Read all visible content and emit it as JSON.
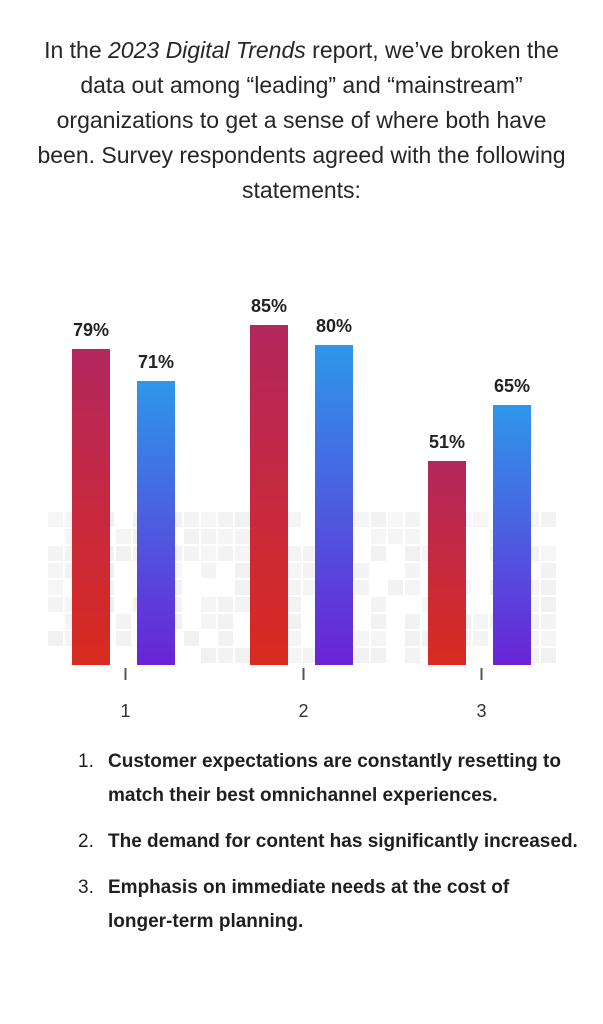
{
  "intro": {
    "prefix": "In the ",
    "report": "2023 Digital Trends",
    "suffix": " report, we’ve broken the data out among “leading” and “mainstream” organizations to get a sense of where both have been. Survey respondents agreed with the following statements:"
  },
  "chart_data": {
    "type": "bar",
    "categories": [
      "1",
      "2",
      "3"
    ],
    "series": [
      {
        "values": [
          79,
          85,
          51
        ],
        "labels": [
          "79%",
          "85%",
          "51%"
        ],
        "color": "#d0304a"
      },
      {
        "values": [
          71,
          80,
          65
        ],
        "labels": [
          "71%",
          "80%",
          "65%"
        ],
        "color": "#3a7ee0"
      }
    ],
    "ylim": [
      0,
      100
    ],
    "grid": false,
    "legend": "none"
  },
  "statements": [
    {
      "num": "1.",
      "text": "Customer expectations are constantly resetting to match their best omnichannel experiences."
    },
    {
      "num": "2.",
      "text": "The demand for content has significantly increased."
    },
    {
      "num": "3.",
      "text": "Emphasis on immediate needs at the cost of longer-term planning."
    }
  ]
}
